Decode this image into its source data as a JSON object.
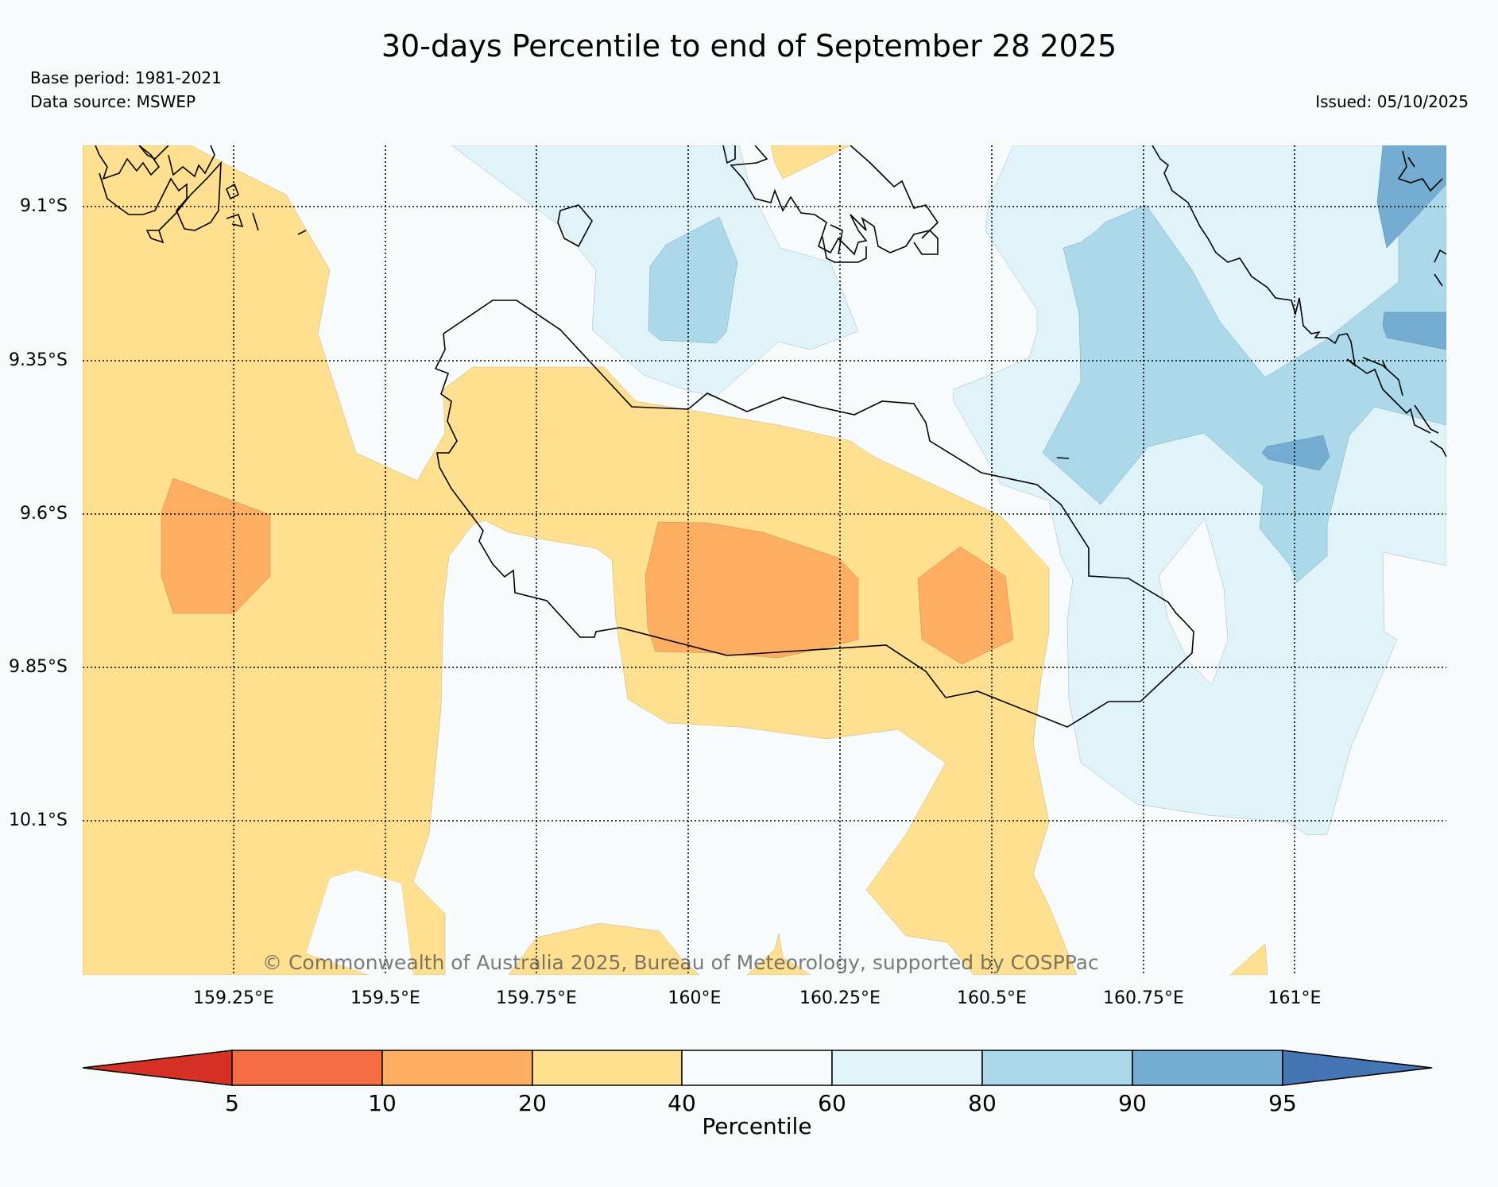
{
  "header": {
    "title": "30-days Percentile to end of September 28 2025",
    "base_period": "Base period: 1981-2021",
    "data_source": "Data source: MSWEP",
    "issued": "Issued: 05/10/2025"
  },
  "map": {
    "lat_labels": [
      "9.1°S",
      "9.35°S",
      "9.6°S",
      "9.85°S",
      "10.1°S"
    ],
    "lon_labels": [
      "159.25°E",
      "159.5°E",
      "159.75°E",
      "160°E",
      "160.25°E",
      "160.5°E",
      "160.75°E",
      "161°E"
    ],
    "watermark": "© Commonwealth of Australia 2025, Bureau of Meteorology, supported by COSPPac",
    "category_colors": {
      "p20_40": "#fee090",
      "p10_20": "#fdae61",
      "p40_60": "#f7fbfc",
      "p60_80": "#e0f3f8",
      "p80_90": "#abd9e9",
      "p90_95": "#74add1"
    }
  },
  "colorbar": {
    "label": "Percentile",
    "ticks": [
      "5",
      "10",
      "20",
      "40",
      "60",
      "80",
      "90",
      "95"
    ],
    "colors": [
      "#d73027",
      "#f46d43",
      "#fdae61",
      "#fee090",
      "#f7fbfc",
      "#e0f3f8",
      "#abd9e9",
      "#74add1",
      "#4575b4"
    ]
  }
}
